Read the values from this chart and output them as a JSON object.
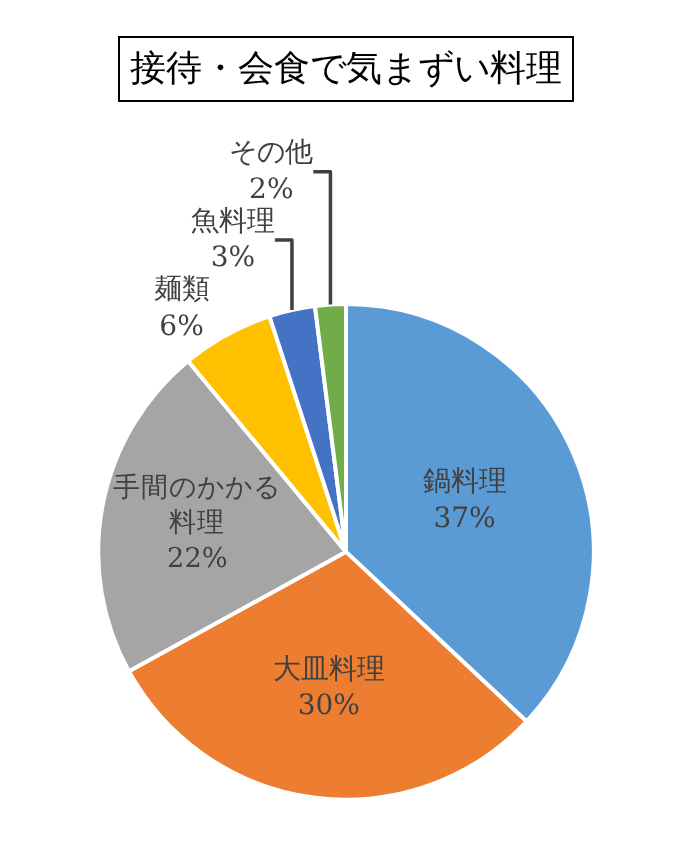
{
  "chart_data": {
    "type": "pie",
    "title": "接待・会食で気まずい料理",
    "categories": [
      "鍋料理",
      "大皿料理",
      "手間のかかる料理",
      "麺類",
      "魚料理",
      "その他"
    ],
    "values": [
      37,
      30,
      22,
      6,
      3,
      2
    ],
    "value_labels": [
      "37%",
      "30%",
      "22%",
      "6%",
      "3%",
      "2%"
    ],
    "colors": [
      "#5b9bd5",
      "#ed7d31",
      "#a5a5a5",
      "#ffc000",
      "#4472c4",
      "#70ad47"
    ],
    "legend": false
  }
}
